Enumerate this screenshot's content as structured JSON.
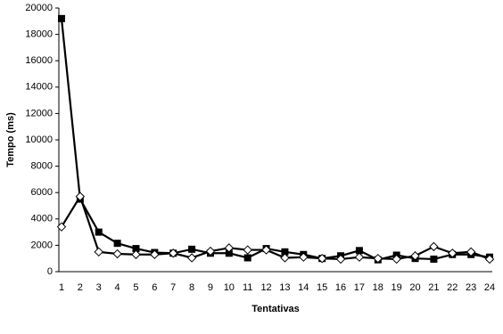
{
  "chart_data": {
    "type": "line",
    "x_label": "Tentativas",
    "y_label": "Tempo (ms)",
    "categories": [
      "1",
      "2",
      "3",
      "4",
      "5",
      "6",
      "7",
      "8",
      "9",
      "10",
      "11",
      "12",
      "13",
      "14",
      "15",
      "16",
      "17",
      "18",
      "19",
      "20",
      "21",
      "22",
      "23",
      "24"
    ],
    "series": [
      {
        "color": "#000000",
        "marker": "square",
        "values": [
          19200,
          5500,
          3000,
          2150,
          1750,
          1450,
          1400,
          1700,
          1400,
          1400,
          1050,
          1750,
          1500,
          1300,
          1000,
          1200,
          1600,
          900,
          1250,
          1000,
          950,
          1300,
          1300,
          1100
        ]
      },
      {
        "color": "#000000",
        "marker": "diamond",
        "values": [
          3400,
          5700,
          1500,
          1350,
          1300,
          1300,
          1400,
          1050,
          1550,
          1800,
          1650,
          1650,
          1050,
          1100,
          1000,
          950,
          1100,
          1000,
          950,
          1200,
          1900,
          1400,
          1500,
          950
        ]
      }
    ],
    "ylim": [
      0,
      20000
    ],
    "yticks": [
      0,
      2000,
      4000,
      6000,
      8000,
      10000,
      12000,
      14000,
      16000,
      18000,
      20000
    ],
    "grid": false
  }
}
